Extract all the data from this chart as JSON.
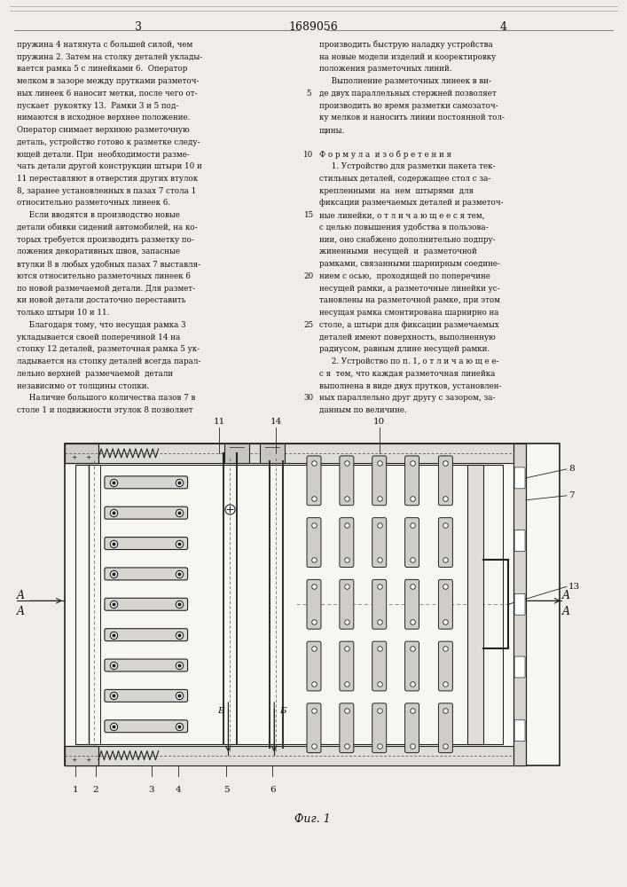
{
  "page_width": 7.07,
  "page_height": 10.0,
  "bg_color": "#f0ede8",
  "text_color": "#111111",
  "line_color": "#222222",
  "page_number_left": "3",
  "page_number_center": "1689056",
  "page_number_right": "4",
  "fig_caption": "Фиг. 1",
  "left_column_text": [
    "пружина 4 натянута с большей силой, чем",
    "пружина 2. Затем на столку деталей уклады-",
    "вается рамка 5 с линейками 6.  Оператор",
    "мелком в зазоре между прутками разметоч-",
    "ных линеек 6 наносит метки, после чего от-",
    "пускает  рукоятку 13.  Рамки 3 и 5 под-",
    "нимаются в исходное верхнее положение.",
    "Оператор снимает верхнюю разметочную",
    "деталь, устройство готово к разметке следу-",
    "ющей детали. При  необходимости разме-",
    "чать детали другой конструкции штыри 10 и",
    "11 переставляют в отверстия других втулок",
    "8, заранее установленных в пазах 7 стола 1",
    "относительно разметочных линеек 6.",
    "     Если вводятся в производство новые",
    "детали обивки сидений автомобилей, на ко-",
    "торых требуется производить разметку по-",
    "ложения декоративных швов, запасные",
    "втулки 8 в любых удобных пазах 7 выставля-",
    "ются относительно разметочных линеек 6",
    "по новой размечаемой детали. Для размет-",
    "ки новой детали достаточно переставить",
    "только штыри 10 и 11.",
    "     Благодаря тому, что несущая рамка 3",
    "укладывается своей поперечиной 14 на",
    "стопку 12 деталей, разметочная рамка 5 ук-",
    "ладывается на стопку деталей всегда парал-",
    "лельно верхней  размечаемой  детали",
    "независимо от толщины стопки.",
    "     Наличие большого количества пазов 7 в",
    "столе 1 и подвижности этулок 8 позволяет"
  ],
  "right_column_text": [
    "производить быструю наладку устройства",
    "на новые модели изделий и кооректировку",
    "положения разметочных линий.",
    "     Выполнение разметочных линеек в ви-",
    "де двух параллельных стержней позволяет",
    "производить во время разметки самозаточ-",
    "ку мелков и наносить линии постоянной тол-",
    "щины.",
    "",
    "Ф о р м у л а  и з о б р е т е н и я",
    "     1. Устройство для разметки пакета тек-",
    "стильных деталей, содержащее стол с за-",
    "крепленными  на  нем  штырями  для",
    "фиксации размечаемых деталей и разметоч-",
    "ные линейки, о т л и ч а ю щ е е с я тем,",
    "с целью повышения удобства в пользова-",
    "нии, оно снабжено дополнительно подпру-",
    "жиненными  несущей  и  разметочной",
    "рамками, связанными шарнирным соедине-",
    "нием с осью,  проходящей по поперечине",
    "несущей рамки, а разметочные линейки ус-",
    "тановлены на разметочной рамке, при этом",
    "несущая рамка смонтирована шарнирно на",
    "столе, а штыри для фиксации размечаемых",
    "деталей имеют поверхность, выполненную",
    "радиусом, равным длине несущей рамки.",
    "     2. Устройство по п. 1, о т л и ч а ю щ е е-",
    "с я  тем, что каждая разметочная линейка",
    "выполнена в виде двух прутков, установлен-",
    "ных параллельно друг другу с зазором, за-",
    "данным по величине."
  ]
}
